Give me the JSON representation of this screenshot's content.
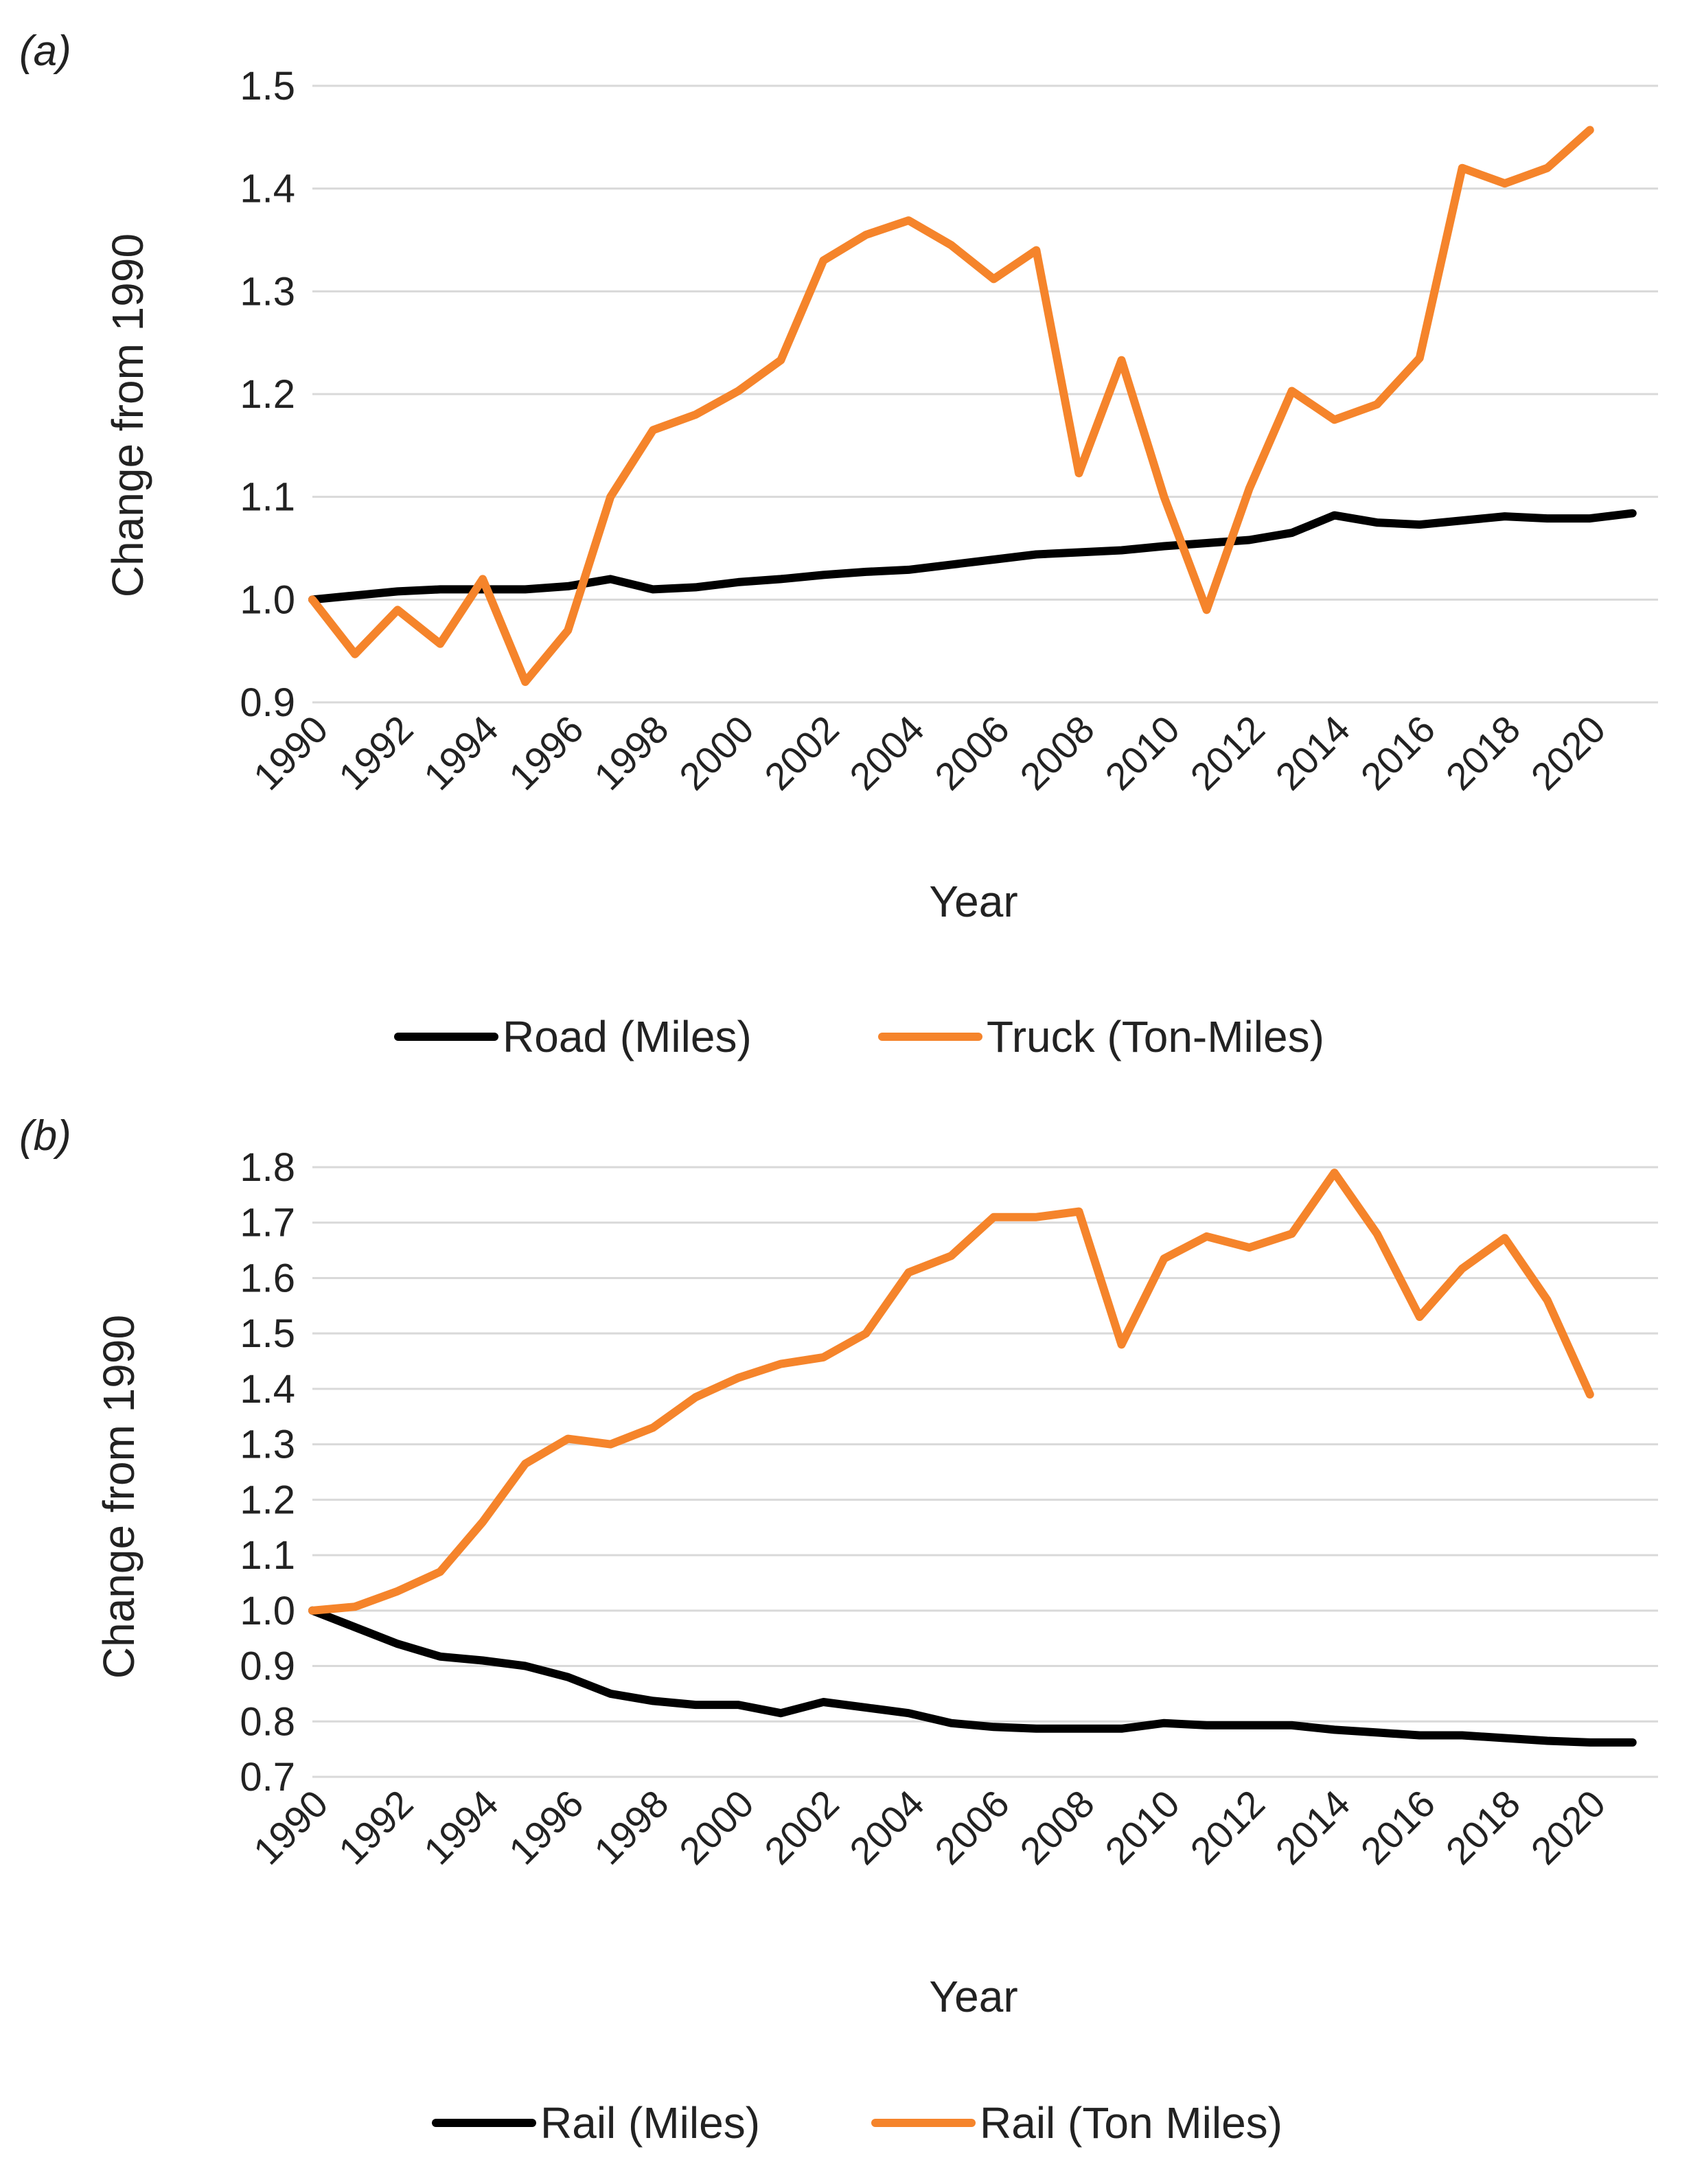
{
  "chart_data": [
    {
      "type": "line",
      "panel_label": "(a)",
      "xlabel": "Year",
      "ylabel": "Change from 1990",
      "ylim": [
        0.9,
        1.5
      ],
      "y_ticks": [
        "0.9",
        "1.0",
        "1.1",
        "1.2",
        "1.3",
        "1.4",
        "1.5"
      ],
      "x_tick_labels": [
        "1990",
        "1992",
        "1994",
        "1996",
        "1998",
        "2000",
        "2002",
        "2004",
        "2006",
        "2008",
        "2010",
        "2012",
        "2014",
        "2016",
        "2018",
        "2020"
      ],
      "grid": true,
      "legend_position": "bottom",
      "series": [
        {
          "name": "Road (Miles)",
          "color": "#000000",
          "x": [
            1990,
            1991,
            1992,
            1993,
            1994,
            1995,
            1996,
            1997,
            1998,
            1999,
            2000,
            2001,
            2002,
            2003,
            2004,
            2005,
            2006,
            2007,
            2008,
            2009,
            2010,
            2011,
            2012,
            2013,
            2014,
            2015,
            2016,
            2017,
            2018,
            2019,
            2020,
            2021
          ],
          "values": [
            1.0,
            1.004,
            1.008,
            1.01,
            1.01,
            1.01,
            1.013,
            1.02,
            1.01,
            1.012,
            1.017,
            1.02,
            1.024,
            1.027,
            1.029,
            1.034,
            1.039,
            1.044,
            1.046,
            1.048,
            1.052,
            1.055,
            1.058,
            1.065,
            1.082,
            1.075,
            1.073,
            1.077,
            1.081,
            1.079,
            1.079,
            1.084
          ]
        },
        {
          "name": "Truck (Ton-Miles)",
          "color": "#f5842b",
          "x": [
            1990,
            1991,
            1992,
            1993,
            1994,
            1995,
            1996,
            1997,
            1998,
            1999,
            2000,
            2001,
            2002,
            2003,
            2004,
            2005,
            2006,
            2007,
            2008,
            2009,
            2010,
            2011,
            2012,
            2013,
            2014,
            2015,
            2016,
            2017,
            2018,
            2019,
            2020
          ],
          "values": [
            1.0,
            0.947,
            0.99,
            0.957,
            1.02,
            0.92,
            0.97,
            1.1,
            1.165,
            1.18,
            1.203,
            1.233,
            1.33,
            1.355,
            1.369,
            1.345,
            1.312,
            1.34,
            1.123,
            1.233,
            1.1,
            0.99,
            1.108,
            1.203,
            1.175,
            1.19,
            1.235,
            1.42,
            1.405,
            1.42,
            1.457
          ]
        }
      ]
    },
    {
      "type": "line",
      "panel_label": "(b)",
      "xlabel": "Year",
      "ylabel": "Change from 1990",
      "ylim": [
        0.7,
        1.8
      ],
      "y_ticks": [
        "0.7",
        "0.8",
        "0.9",
        "1.0",
        "1.1",
        "1.2",
        "1.3",
        "1.4",
        "1.5",
        "1.6",
        "1.7",
        "1.8"
      ],
      "x_tick_labels": [
        "1990",
        "1992",
        "1994",
        "1996",
        "1998",
        "2000",
        "2002",
        "2004",
        "2006",
        "2008",
        "2010",
        "2012",
        "2014",
        "2016",
        "2018",
        "2020"
      ],
      "grid": true,
      "legend_position": "bottom",
      "series": [
        {
          "name": "Rail (Miles)",
          "color": "#000000",
          "x": [
            1990,
            1991,
            1992,
            1993,
            1994,
            1995,
            1996,
            1997,
            1998,
            1999,
            2000,
            2001,
            2002,
            2003,
            2004,
            2005,
            2006,
            2007,
            2008,
            2009,
            2010,
            2011,
            2012,
            2013,
            2014,
            2015,
            2016,
            2017,
            2018,
            2019,
            2020,
            2021
          ],
          "values": [
            1.0,
            0.97,
            0.94,
            0.917,
            0.91,
            0.9,
            0.88,
            0.85,
            0.837,
            0.83,
            0.83,
            0.815,
            0.835,
            0.825,
            0.815,
            0.797,
            0.79,
            0.787,
            0.787,
            0.787,
            0.797,
            0.793,
            0.793,
            0.793,
            0.785,
            0.78,
            0.775,
            0.775,
            0.77,
            0.765,
            0.762,
            0.762
          ]
        },
        {
          "name": "Rail (Ton Miles)",
          "color": "#f5842b",
          "x": [
            1990,
            1991,
            1992,
            1993,
            1994,
            1995,
            1996,
            1997,
            1998,
            1999,
            2000,
            2001,
            2002,
            2003,
            2004,
            2005,
            2006,
            2007,
            2008,
            2009,
            2010,
            2011,
            2012,
            2013,
            2014,
            2015,
            2016,
            2017,
            2018,
            2019,
            2020
          ],
          "values": [
            1.0,
            1.007,
            1.035,
            1.07,
            1.16,
            1.265,
            1.31,
            1.3,
            1.33,
            1.385,
            1.42,
            1.445,
            1.457,
            1.5,
            1.61,
            1.64,
            1.71,
            1.71,
            1.72,
            1.48,
            1.635,
            1.675,
            1.655,
            1.68,
            1.79,
            1.68,
            1.53,
            1.617,
            1.672,
            1.56,
            1.39
          ]
        }
      ]
    }
  ]
}
